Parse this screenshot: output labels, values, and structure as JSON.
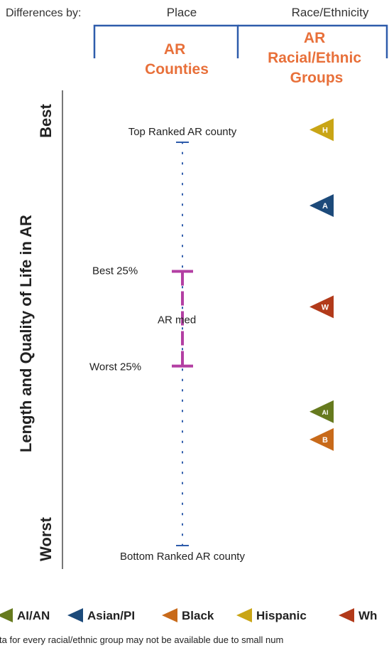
{
  "chart_data": {
    "type": "scatter",
    "header": {
      "differences_by": "Differences by:",
      "place": "Place",
      "race_ethnicity": "Race/Ethnicity"
    },
    "columns": {
      "place": [
        "AR",
        "Counties"
      ],
      "race_ethnicity": [
        "AR",
        "Racial/Ethnic",
        "Groups"
      ]
    },
    "ylabel": "Length and Quality of Life in AR",
    "axis_ends": {
      "best": "Best",
      "worst": "Worst"
    },
    "county_labels": {
      "top": "Top Ranked AR county",
      "best25": "Best 25%",
      "median": "AR med",
      "worst25": "Worst 25%",
      "bottom": "Bottom Ranked AR county"
    },
    "county_scale": {
      "top": 0,
      "best25": 0.32,
      "median": 0.44,
      "worst25": 0.555,
      "bottom": 1.0
    },
    "groups": [
      {
        "letter": "H",
        "legend": "Hispanic",
        "color": "#c9a516",
        "value": -0.031
      },
      {
        "letter": "A",
        "legend": "Asian/PI",
        "color": "#1c4a7a",
        "value": 0.157
      },
      {
        "letter": "W",
        "legend": "Wh",
        "color": "#b23a1a",
        "value": 0.408
      },
      {
        "letter": "AI",
        "legend": "AI/AN",
        "color": "#667a1e",
        "value": 0.668
      },
      {
        "letter": "B",
        "legend": "Black",
        "color": "#c86a1a",
        "value": 0.737
      }
    ],
    "legend_order": [
      "AI",
      "A",
      "B",
      "H",
      "W"
    ],
    "footnote": "ta for every racial/ethnic group may not be available due to small num"
  },
  "colors": {
    "bracket": "#2e5cab",
    "accent": "#e8703a",
    "median": "#b33fa3",
    "axis": "#777777"
  }
}
